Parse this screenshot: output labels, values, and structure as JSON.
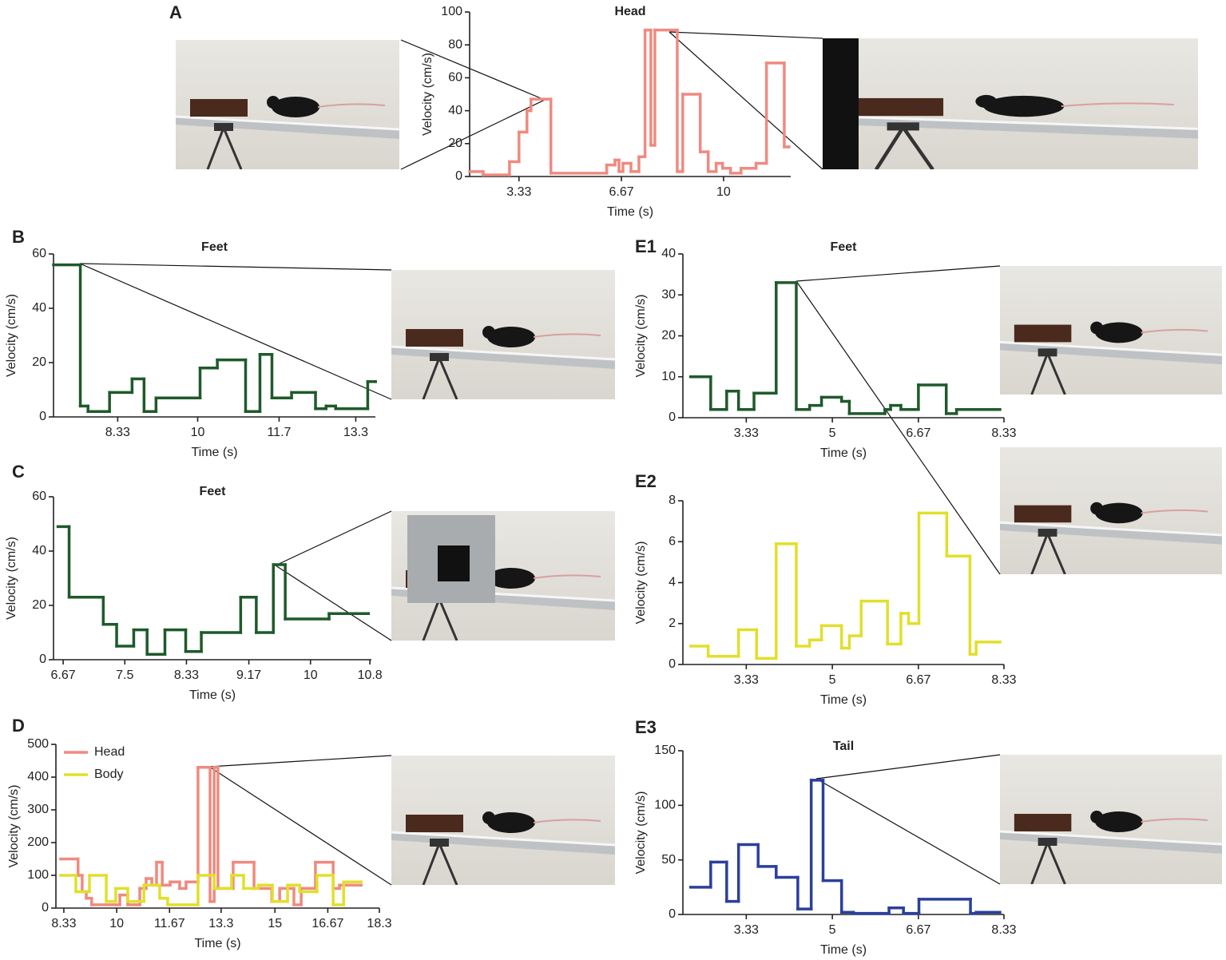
{
  "chart_data": [
    {
      "type": "line",
      "step": "post",
      "panel": "A",
      "title": "Head",
      "x_label": "Time (s)",
      "y_label": "Velocity (cm/s)",
      "color": "#ef8a80",
      "x": [
        1.72,
        2.16,
        3.02,
        3.33,
        3.59,
        3.72,
        4.37,
        6.19,
        6.46,
        6.59,
        6.72,
        6.98,
        7.24,
        7.44,
        7.63,
        7.76,
        8.49,
        8.67,
        9.24,
        9.5,
        9.76,
        9.97,
        10.23,
        10.57,
        11.06,
        11.4,
        11.98,
        12.13
      ],
      "values": [
        3,
        1,
        9,
        27,
        40,
        47,
        2,
        7,
        10,
        3,
        8,
        3,
        12,
        89,
        19,
        89,
        3,
        50,
        15,
        3,
        8,
        5,
        2,
        5,
        8,
        69,
        18,
        18
      ],
      "xlim": [
        1.72,
        12.19
      ],
      "ylim": [
        0,
        100
      ],
      "xticks": [
        3.33,
        6.67,
        10
      ],
      "yticks": [
        0,
        20,
        40,
        60,
        80,
        100
      ]
    },
    {
      "type": "line",
      "step": "post",
      "panel": "B",
      "title": "Feet",
      "x_label": "Time (s)",
      "y_label": "Velocity (cm/s)",
      "color": "#1e5a2a",
      "x": [
        6.99,
        7.55,
        7.71,
        8.16,
        8.63,
        8.88,
        9.13,
        10.05,
        10.41,
        11.0,
        11.3,
        11.55,
        11.96,
        12.46,
        12.68,
        12.88,
        13.55,
        13.71
      ],
      "values": [
        56,
        4,
        2,
        9,
        14,
        2,
        7,
        18,
        21,
        2,
        23,
        7,
        9,
        3,
        4,
        3,
        13,
        13
      ],
      "xlim": [
        6.99,
        13.71
      ],
      "ylim": [
        0,
        60
      ],
      "xticks": [
        8.33,
        10,
        11.7,
        13.3
      ],
      "yticks": [
        0,
        20,
        40,
        60
      ]
    },
    {
      "type": "line",
      "step": "post",
      "panel": "C",
      "title": "Feet",
      "x_label": "Time (s)",
      "y_label": "Velocity (cm/s)",
      "color": "#1e5a2a",
      "x": [
        6.6,
        6.75,
        7.21,
        7.39,
        7.62,
        7.8,
        8.04,
        8.32,
        8.53,
        9.06,
        9.27,
        9.5,
        9.66,
        10.25,
        10.78
      ],
      "values": [
        49,
        23,
        13,
        5,
        11,
        2,
        11,
        3,
        10,
        23,
        10,
        35,
        15,
        17,
        17
      ],
      "xlim": [
        6.54,
        10.82
      ],
      "ylim": [
        0,
        60
      ],
      "xticks": [
        6.67,
        7.5,
        8.33,
        9.17,
        10,
        10.8
      ],
      "yticks": [
        0,
        20,
        40,
        60
      ]
    },
    {
      "type": "line",
      "step": "post",
      "panel": "D",
      "x_label": "Time (s)",
      "y_label": "Velocity (cm/s)",
      "legend": "upper left",
      "series": [
        {
          "name": "Head",
          "color": "#ef8a80",
          "x": [
            8.23,
            8.78,
            8.91,
            9.04,
            9.21,
            10.1,
            10.35,
            10.73,
            10.93,
            11.11,
            11.26,
            11.44,
            11.69,
            11.99,
            12.19,
            12.57,
            12.95,
            13.08,
            13.2,
            13.68,
            14.34,
            14.9,
            15.15,
            15.6,
            15.83,
            16.28,
            16.84,
            17.04,
            17.72
          ],
          "values": [
            150,
            100,
            50,
            30,
            10,
            40,
            10,
            60,
            90,
            70,
            140,
            70,
            80,
            60,
            80,
            430,
            20,
            430,
            60,
            140,
            60,
            20,
            60,
            10,
            60,
            140,
            60,
            70,
            70
          ]
        },
        {
          "name": "Body",
          "color": "#e2df2a",
          "x": [
            8.23,
            8.71,
            9.14,
            9.67,
            9.97,
            10.35,
            10.86,
            11.36,
            11.61,
            12.57,
            13.08,
            13.63,
            14.01,
            14.47,
            14.92,
            15.4,
            15.78,
            16.33,
            16.84,
            17.17,
            17.72
          ],
          "values": [
            100,
            50,
            100,
            20,
            60,
            20,
            70,
            30,
            10,
            100,
            60,
            100,
            60,
            70,
            20,
            70,
            50,
            100,
            10,
            80,
            80
          ]
        }
      ],
      "xlim": [
        8.08,
        18.3
      ],
      "ylim": [
        0,
        500
      ],
      "xticks": [
        8.33,
        10,
        11.67,
        13.3,
        15,
        16.67,
        18.3
      ],
      "yticks": [
        0,
        100,
        200,
        300,
        400,
        500
      ]
    },
    {
      "type": "line",
      "step": "post",
      "panel": "E1",
      "title": "Feet",
      "x_label": "Time (s)",
      "y_label": "Velocity (cm/s)",
      "color": "#1e5a2a",
      "x": [
        2.25,
        2.64,
        2.95,
        3.18,
        3.48,
        3.91,
        4.3,
        4.56,
        4.79,
        5.18,
        5.33,
        6.02,
        6.13,
        6.33,
        6.67,
        7.21,
        7.41,
        8.25
      ],
      "values": [
        10,
        2,
        6.5,
        2,
        6,
        33,
        2,
        3,
        5,
        4,
        1,
        2,
        3,
        2,
        8,
        1,
        2,
        2
      ],
      "xlim": [
        2.1,
        8.33
      ],
      "ylim": [
        0,
        40
      ],
      "xticks": [
        3.33,
        5,
        6.67,
        8.33
      ],
      "yticks": [
        0,
        10,
        20,
        30,
        40
      ]
    },
    {
      "type": "line",
      "step": "post",
      "panel": "E2",
      "x_label": "Time (s)",
      "y_label": "Velocity (cm/s)",
      "color": "#e2df2a",
      "x": [
        2.25,
        2.59,
        3.18,
        3.53,
        3.91,
        4.3,
        4.56,
        4.79,
        5.18,
        5.33,
        5.56,
        6.07,
        6.33,
        6.48,
        6.68,
        7.22,
        7.67,
        7.79,
        8.25
      ],
      "values": [
        0.9,
        0.4,
        1.7,
        0.3,
        5.9,
        0.9,
        1.2,
        1.9,
        0.8,
        1.4,
        3.1,
        1.0,
        2.5,
        2.0,
        7.4,
        5.3,
        0.5,
        1.1,
        1.1
      ],
      "xlim": [
        2.1,
        8.33
      ],
      "ylim": [
        0,
        8
      ],
      "xticks": [
        3.33,
        5,
        6.67,
        8.33
      ],
      "yticks": [
        0,
        2,
        4,
        6,
        8
      ]
    },
    {
      "type": "line",
      "step": "post",
      "panel": "E3",
      "title": "Tail",
      "x_label": "Time (s)",
      "y_label": "Velocity (cm/s)",
      "color": "#2a3f9e",
      "x": [
        2.25,
        2.64,
        2.95,
        3.18,
        3.56,
        3.91,
        4.33,
        4.59,
        4.82,
        5.18,
        5.41,
        6.1,
        6.38,
        6.68,
        7.68,
        7.79,
        8.25
      ],
      "values": [
        25,
        48,
        12,
        64,
        44,
        34,
        5,
        123,
        31,
        2,
        1,
        6,
        1,
        14,
        1,
        2,
        2
      ],
      "xlim": [
        2.1,
        8.33
      ],
      "ylim": [
        0,
        150
      ],
      "xticks": [
        3.33,
        5,
        6.67,
        8.33
      ],
      "yticks": [
        0,
        50,
        100,
        150
      ]
    }
  ]
}
